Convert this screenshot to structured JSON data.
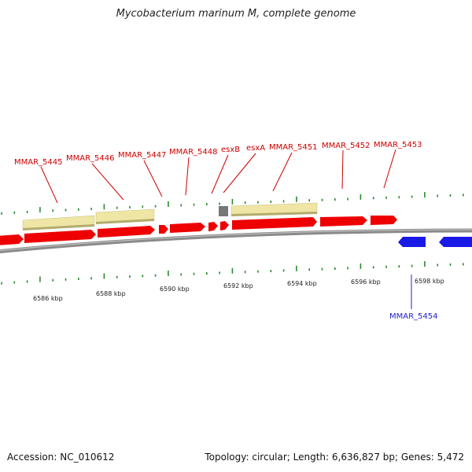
{
  "title": "Mycobacterium marinum M, complete genome",
  "accession": "Accession: NC_010612",
  "summary": "Topology: circular; Length: 6,636,827 bp; Genes: 5,472",
  "colors": {
    "forward_gene": "#ee0000",
    "reverse_gene": "#1a1ae6",
    "cds_feature": "#efe6a6",
    "other_feature": "#777777",
    "backbone": "#8a8a8a",
    "tick": "#2a8a2a",
    "forward_label": "#cc0000",
    "reverse_label": "#2222cc"
  },
  "axis": {
    "unit": "kbp",
    "ticks": [
      {
        "value": 6586,
        "label": "6586 kbp"
      },
      {
        "value": 6588,
        "label": "6588 kbp"
      },
      {
        "value": 6590,
        "label": "6590 kbp"
      },
      {
        "value": 6592,
        "label": "6592 kbp"
      },
      {
        "value": 6594,
        "label": "6594 kbp"
      },
      {
        "value": 6596,
        "label": "6596 kbp"
      },
      {
        "value": 6598,
        "label": "6598 kbp"
      }
    ]
  },
  "genes": [
    {
      "name": "MMAR_5445",
      "strand": "+"
    },
    {
      "name": "MMAR_5446",
      "strand": "+"
    },
    {
      "name": "MMAR_5447",
      "strand": "+"
    },
    {
      "name": "MMAR_5448",
      "strand": "+"
    },
    {
      "name": "esxB",
      "strand": "+"
    },
    {
      "name": "esxA",
      "strand": "+"
    },
    {
      "name": "MMAR_5451",
      "strand": "+"
    },
    {
      "name": "MMAR_5452",
      "strand": "+"
    },
    {
      "name": "MMAR_5453",
      "strand": "+"
    },
    {
      "name": "MMAR_5454",
      "strand": "-"
    }
  ]
}
